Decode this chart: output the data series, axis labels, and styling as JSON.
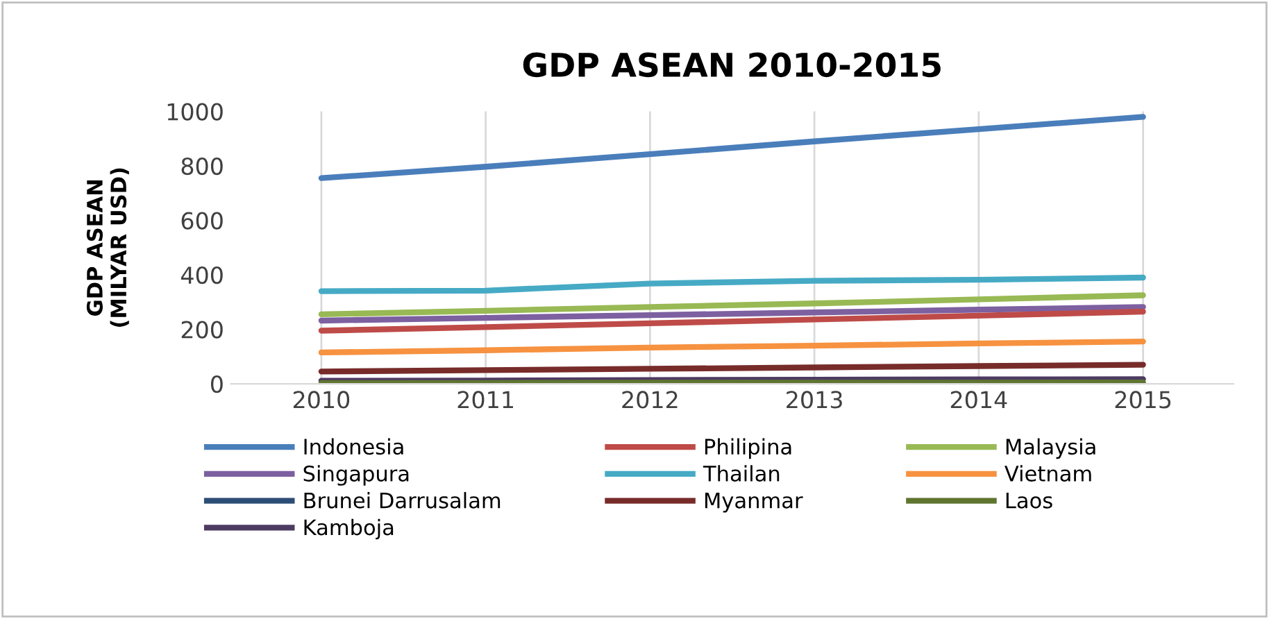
{
  "chart_data": {
    "type": "line",
    "title": "GDP ASEAN 2010-2015",
    "ylabel": "GDP ASEAN\n(MILYAR USD)",
    "categories": [
      "2010",
      "2011",
      "2012",
      "2013",
      "2014",
      "2015"
    ],
    "ylim": [
      0,
      1000
    ],
    "yticks": [
      0,
      200,
      400,
      600,
      800,
      1000
    ],
    "grid": "x",
    "legend": "bottom",
    "marker": "none",
    "line_style": "solid",
    "series": [
      {
        "name": "Indonesia",
        "color": "#4a7ebb",
        "values": [
          755,
          797,
          843,
          890,
          935,
          980
        ]
      },
      {
        "name": "Philipina",
        "color": "#be4b48",
        "values": [
          195,
          208,
          222,
          236,
          250,
          265
        ]
      },
      {
        "name": "Malaysia",
        "color": "#98b954",
        "values": [
          255,
          268,
          282,
          295,
          310,
          325
        ]
      },
      {
        "name": "Singapura",
        "color": "#7d60a0",
        "values": [
          232,
          242,
          252,
          262,
          272,
          282
        ]
      },
      {
        "name": "Thailan",
        "color": "#46aac5",
        "values": [
          340,
          342,
          368,
          378,
          382,
          390
        ]
      },
      {
        "name": "Vietnam",
        "color": "#f69240",
        "values": [
          115,
          123,
          133,
          140,
          148,
          155
        ]
      },
      {
        "name": "Brunei Darrusalam",
        "color": "#2c4d75",
        "values": [
          null,
          null,
          null,
          null,
          null,
          null
        ]
      },
      {
        "name": "Myanmar",
        "color": "#772c2a",
        "values": [
          45,
          50,
          55,
          60,
          65,
          70
        ]
      },
      {
        "name": "Laos",
        "color": "#5f7530",
        "values": [
          3,
          3,
          4,
          4,
          4,
          5
        ]
      },
      {
        "name": "Kamboja",
        "color": "#4d3b62",
        "values": [
          11,
          12,
          14,
          15,
          16,
          17
        ]
      }
    ]
  }
}
